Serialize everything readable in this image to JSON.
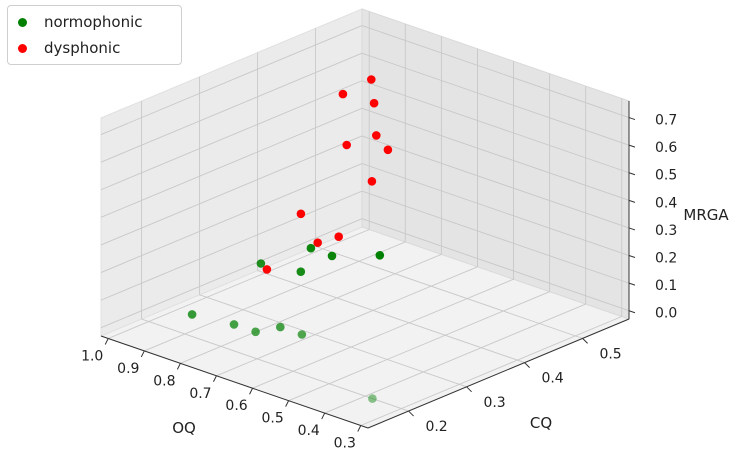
{
  "chart_data": {
    "type": "scatter",
    "title": "",
    "xlabel": "OQ",
    "ylabel": "CQ",
    "zlabel": "MRGA",
    "grid": true,
    "legend_position": "top-left",
    "x_ticks": [
      "0.3",
      "0.4",
      "0.5",
      "0.6",
      "0.7",
      "0.8",
      "0.9",
      "1.0"
    ],
    "y_ticks": [
      "0.2",
      "0.3",
      "0.4",
      "0.5"
    ],
    "z_ticks": [
      "0.0",
      "0.1",
      "0.2",
      "0.3",
      "0.4",
      "0.5",
      "0.6",
      "0.7"
    ],
    "series": [
      {
        "name": "normophonic",
        "color": "#008000",
        "points": [
          {
            "x": 0.3,
            "y": 0.15,
            "z": 0.05
          },
          {
            "x": 0.64,
            "y": 0.24,
            "z": 0.05
          },
          {
            "x": 0.7,
            "y": 0.24,
            "z": 0.05
          },
          {
            "x": 0.72,
            "y": 0.21,
            "z": 0.05
          },
          {
            "x": 0.78,
            "y": 0.21,
            "z": 0.05
          },
          {
            "x": 0.88,
            "y": 0.2,
            "z": 0.05
          },
          {
            "x": 0.85,
            "y": 0.3,
            "z": 0.16
          },
          {
            "x": 0.82,
            "y": 0.35,
            "z": 0.1
          },
          {
            "x": 0.84,
            "y": 0.38,
            "z": 0.15
          },
          {
            "x": 0.83,
            "y": 0.41,
            "z": 0.1
          },
          {
            "x": 0.81,
            "y": 0.48,
            "z": 0.05
          }
        ]
      },
      {
        "name": "dysphonic",
        "color": "#ff0000",
        "points": [
          {
            "x": 0.93,
            "y": 0.36,
            "z": 0.05
          },
          {
            "x": 0.9,
            "y": 0.4,
            "z": 0.23
          },
          {
            "x": 0.94,
            "y": 0.49,
            "z": 0.05
          },
          {
            "x": 0.95,
            "y": 0.46,
            "z": 0.05
          },
          {
            "x": 0.88,
            "y": 0.51,
            "z": 0.26
          },
          {
            "x": 0.9,
            "y": 0.53,
            "z": 0.4
          },
          {
            "x": 0.9,
            "y": 0.55,
            "z": 0.33
          },
          {
            "x": 0.95,
            "y": 0.51,
            "z": 0.36
          },
          {
            "x": 0.89,
            "y": 0.52,
            "z": 0.53
          },
          {
            "x": 0.88,
            "y": 0.46,
            "z": 0.62
          },
          {
            "x": 0.93,
            "y": 0.54,
            "z": 0.58
          }
        ]
      }
    ]
  }
}
